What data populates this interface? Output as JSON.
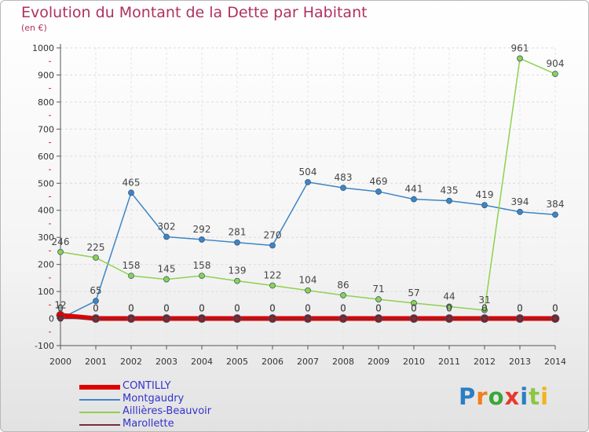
{
  "title": "Evolution du Montant de la Dette par Habitant",
  "subtitle": "(en €)",
  "logo": {
    "text": "Proxiti",
    "colors": [
      "#2a7fc4",
      "#f07f1c",
      "#3aa63a",
      "#e63a2e",
      "#2a7fc4",
      "#8dc63f",
      "#f0b41c"
    ]
  },
  "chart_data": {
    "type": "line",
    "title": "Evolution du Montant de la Dette par Habitant",
    "ylabel": "(en €)",
    "xlabel": "",
    "ylim": [
      -100,
      1000
    ],
    "yticks": [
      -100,
      0,
      100,
      200,
      300,
      400,
      500,
      600,
      700,
      800,
      900,
      1000
    ],
    "x": [
      "2000",
      "2001",
      "2002",
      "2003",
      "2004",
      "2005",
      "2006",
      "2007",
      "2008",
      "2009",
      "2010",
      "2011",
      "2012",
      "2013",
      "2014"
    ],
    "series": [
      {
        "name": "CONTILLY",
        "color": "#e00000",
        "values": [
          12,
          0,
          0,
          0,
          0,
          0,
          0,
          0,
          0,
          0,
          0,
          0,
          0,
          0,
          0
        ],
        "labels": [
          "12",
          "0",
          "0",
          "0",
          "0",
          "0",
          "0",
          "0",
          "0",
          "0",
          "0",
          "0",
          "0",
          "0",
          "0"
        ]
      },
      {
        "name": "Montgaudry",
        "color": "#3d85c6",
        "values": [
          0,
          65,
          465,
          302,
          292,
          281,
          270,
          504,
          483,
          469,
          441,
          435,
          419,
          394,
          384
        ],
        "labels": [
          "0",
          "65",
          "465",
          "302",
          "292",
          "281",
          "270",
          "504",
          "483",
          "469",
          "441",
          "435",
          "419",
          "394",
          "384"
        ]
      },
      {
        "name": "Aillières-Beauvoir",
        "color": "#8fd14f",
        "values": [
          246,
          225,
          158,
          145,
          158,
          139,
          122,
          104,
          86,
          71,
          57,
          44,
          31,
          961,
          904
        ],
        "labels": [
          "246",
          "225",
          "158",
          "145",
          "158",
          "139",
          "122",
          "104",
          "86",
          "71",
          "57",
          "44",
          "31",
          "961",
          "904"
        ]
      },
      {
        "name": "Marollette",
        "color": "#7a2e3a",
        "values": [
          0,
          0,
          0,
          0,
          0,
          0,
          0,
          0,
          0,
          0,
          0,
          0,
          0,
          0,
          0
        ],
        "labels": [
          "0",
          "0",
          "0",
          "0",
          "0",
          "0",
          "0",
          "0",
          "0",
          "0",
          "0",
          "0",
          "0",
          "0",
          "0"
        ]
      }
    ],
    "legend": "bottom-left"
  }
}
